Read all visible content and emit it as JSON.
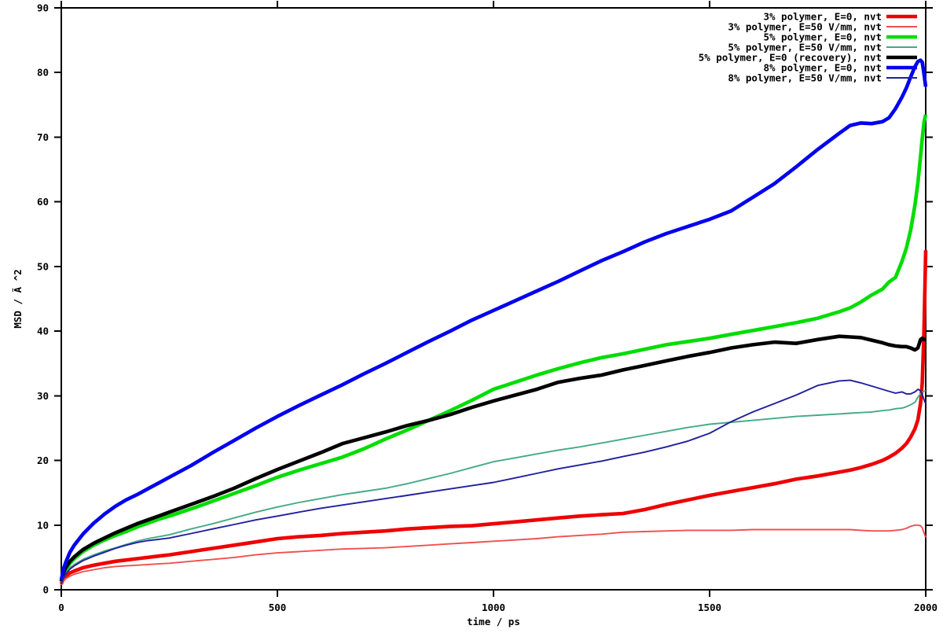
{
  "figure": {
    "background": "#ffffff",
    "axis_color": "#000000"
  },
  "chart_data": {
    "type": "line",
    "title": "",
    "xlabel": "time / ps",
    "ylabel": "MSD / Ã ^2",
    "xlim": [
      0,
      2000
    ],
    "ylim": [
      0,
      90
    ],
    "xticks": [
      0,
      500,
      1000,
      1500,
      2000
    ],
    "yticks": [
      0,
      10,
      20,
      30,
      40,
      50,
      60,
      70,
      80,
      90
    ],
    "grid": false,
    "legend_position": "top-right",
    "x": [
      0,
      5,
      10,
      20,
      30,
      50,
      75,
      100,
      125,
      150,
      175,
      200,
      225,
      250,
      300,
      350,
      400,
      450,
      500,
      550,
      600,
      650,
      700,
      750,
      800,
      850,
      900,
      950,
      1000,
      1050,
      1100,
      1150,
      1200,
      1250,
      1300,
      1350,
      1400,
      1450,
      1500,
      1550,
      1600,
      1650,
      1700,
      1750,
      1800,
      1825,
      1850,
      1875,
      1900,
      1915,
      1930,
      1945,
      1955,
      1965,
      1975,
      1982,
      1988,
      1992,
      1996,
      2000
    ],
    "series": [
      {
        "name": "3% polymer, E=0, nvt",
        "color": "#ee0000",
        "width": "thick",
        "values": [
          0.9,
          1.7,
          2.1,
          2.6,
          2.9,
          3.4,
          3.8,
          4.1,
          4.4,
          4.6,
          4.8,
          5.0,
          5.2,
          5.4,
          5.9,
          6.4,
          6.9,
          7.4,
          7.9,
          8.2,
          8.4,
          8.7,
          8.9,
          9.1,
          9.4,
          9.6,
          9.8,
          9.9,
          10.2,
          10.5,
          10.8,
          11.1,
          11.4,
          11.6,
          11.8,
          12.4,
          13.2,
          13.9,
          14.6,
          15.2,
          15.8,
          16.4,
          17.1,
          17.6,
          18.2,
          18.5,
          18.9,
          19.4,
          20.0,
          20.5,
          21.1,
          21.9,
          22.6,
          23.6,
          24.9,
          26.3,
          28.8,
          32.0,
          40.0,
          52.5
        ]
      },
      {
        "name": "3% polymer, E=50 V/mm, nvt",
        "color": "#f05050",
        "width": "thin",
        "values": [
          0.7,
          1.3,
          1.7,
          2.1,
          2.4,
          2.8,
          3.1,
          3.4,
          3.6,
          3.7,
          3.8,
          3.9,
          4.0,
          4.1,
          4.4,
          4.7,
          5.0,
          5.4,
          5.7,
          5.9,
          6.1,
          6.3,
          6.4,
          6.5,
          6.7,
          6.9,
          7.1,
          7.3,
          7.5,
          7.7,
          7.9,
          8.2,
          8.4,
          8.6,
          8.9,
          9.0,
          9.1,
          9.2,
          9.2,
          9.2,
          9.3,
          9.3,
          9.3,
          9.3,
          9.3,
          9.3,
          9.2,
          9.1,
          9.1,
          9.1,
          9.2,
          9.3,
          9.5,
          9.8,
          10.0,
          10.0,
          9.9,
          9.6,
          8.8,
          8.1
        ]
      },
      {
        "name": "5% polymer, E=0, nvt",
        "color": "#00dd00",
        "width": "thick",
        "values": [
          1.2,
          2.4,
          3.1,
          4.1,
          4.8,
          5.9,
          6.9,
          7.7,
          8.4,
          9.0,
          9.7,
          10.3,
          10.9,
          11.4,
          12.5,
          13.7,
          14.9,
          16.1,
          17.4,
          18.5,
          19.5,
          20.5,
          21.8,
          23.3,
          24.7,
          26.2,
          27.7,
          29.3,
          31.0,
          32.1,
          33.2,
          34.2,
          35.1,
          35.9,
          36.5,
          37.2,
          37.9,
          38.4,
          38.9,
          39.5,
          40.1,
          40.7,
          41.3,
          42.0,
          43.0,
          43.6,
          44.5,
          45.6,
          46.5,
          47.6,
          48.3,
          50.8,
          52.8,
          55.6,
          59.5,
          63.0,
          67.0,
          69.8,
          72.3,
          73.5
        ]
      },
      {
        "name": "5% polymer, E=50 V/mm, nvt",
        "color": "#44aa88",
        "width": "thin",
        "values": [
          1.0,
          2.0,
          2.6,
          3.4,
          3.9,
          4.7,
          5.4,
          6.0,
          6.5,
          7.0,
          7.5,
          7.9,
          8.2,
          8.5,
          9.4,
          10.2,
          11.1,
          12.0,
          12.8,
          13.5,
          14.1,
          14.7,
          15.2,
          15.7,
          16.4,
          17.2,
          18.0,
          18.9,
          19.8,
          20.4,
          21.0,
          21.6,
          22.1,
          22.7,
          23.3,
          23.9,
          24.5,
          25.1,
          25.6,
          25.9,
          26.2,
          26.5,
          26.8,
          27.0,
          27.2,
          27.3,
          27.4,
          27.5,
          27.7,
          27.8,
          28.0,
          28.1,
          28.3,
          28.6,
          29.0,
          29.8,
          30.3,
          30.6,
          30.7,
          30.8
        ]
      },
      {
        "name": "5% polymer, E=0 (recovery), nvt",
        "color": "#000000",
        "width": "thick",
        "values": [
          1.3,
          2.6,
          3.4,
          4.4,
          5.1,
          6.2,
          7.2,
          8.0,
          8.8,
          9.5,
          10.2,
          10.8,
          11.4,
          12.0,
          13.2,
          14.4,
          15.7,
          17.2,
          18.6,
          19.9,
          21.2,
          22.6,
          23.5,
          24.4,
          25.4,
          26.2,
          27.1,
          28.2,
          29.2,
          30.1,
          31.0,
          32.1,
          32.7,
          33.2,
          34.0,
          34.7,
          35.4,
          36.1,
          36.7,
          37.4,
          37.9,
          38.3,
          38.1,
          38.7,
          39.2,
          39.1,
          39.0,
          38.6,
          38.2,
          37.9,
          37.7,
          37.6,
          37.6,
          37.4,
          37.1,
          37.4,
          38.7,
          38.9,
          38.7,
          38.8
        ]
      },
      {
        "name": "8% polymer, E=0, nvt",
        "color": "#0000ee",
        "width": "thick",
        "values": [
          1.5,
          3.2,
          4.2,
          5.8,
          6.9,
          8.6,
          10.3,
          11.7,
          12.9,
          13.9,
          14.7,
          15.6,
          16.5,
          17.4,
          19.2,
          21.2,
          23.1,
          25.0,
          26.8,
          28.5,
          30.1,
          31.7,
          33.4,
          35.0,
          36.7,
          38.4,
          40.0,
          41.7,
          43.2,
          44.7,
          46.2,
          47.7,
          49.3,
          50.9,
          52.3,
          53.8,
          55.1,
          56.2,
          57.3,
          58.6,
          60.7,
          62.8,
          65.4,
          68.1,
          70.6,
          71.8,
          72.2,
          72.1,
          72.4,
          73.0,
          74.4,
          76.2,
          77.6,
          79.3,
          80.9,
          81.7,
          81.9,
          81.6,
          79.8,
          77.8
        ]
      },
      {
        "name": "8% polymer, E=50 V/mm, nvt",
        "color": "#2020a0",
        "width": "thin",
        "values": [
          0.9,
          1.8,
          2.4,
          3.2,
          3.7,
          4.5,
          5.2,
          5.8,
          6.4,
          6.9,
          7.3,
          7.6,
          7.8,
          8.0,
          8.7,
          9.4,
          10.1,
          10.8,
          11.4,
          12.0,
          12.6,
          13.1,
          13.6,
          14.1,
          14.6,
          15.1,
          15.6,
          16.1,
          16.6,
          17.3,
          18.0,
          18.7,
          19.3,
          19.9,
          20.6,
          21.3,
          22.1,
          23.0,
          24.2,
          26.0,
          27.5,
          28.8,
          30.1,
          31.6,
          32.3,
          32.4,
          32.0,
          31.5,
          31.0,
          30.7,
          30.4,
          30.6,
          30.3,
          30.3,
          30.6,
          31.0,
          30.8,
          30.2,
          29.4,
          28.8
        ]
      }
    ]
  }
}
